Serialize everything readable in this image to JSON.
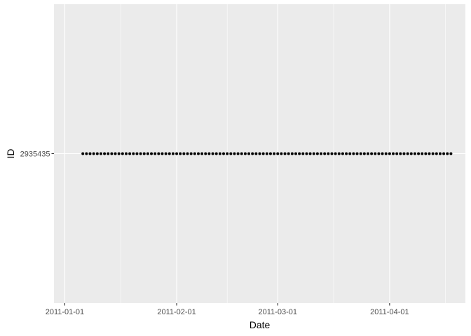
{
  "chart_data": {
    "type": "scatter",
    "xlabel": "Date",
    "ylabel": "ID",
    "x_scale": "date",
    "y_scale": "categorical",
    "xlim": [
      "2010-12-29",
      "2011-04-22"
    ],
    "x_ticks": [
      "2011-01-01",
      "2011-02-01",
      "2011-03-01",
      "2011-04-01"
    ],
    "y_categories": [
      "2935435"
    ],
    "grid": true,
    "legend": "none",
    "panel_color": "#EBEBEB",
    "grid_color": "#FFFFFF",
    "point_color": "#000000",
    "series": [
      {
        "category": "2935435",
        "x": [
          "2011-01-06",
          "2011-01-07",
          "2011-01-08",
          "2011-01-09",
          "2011-01-10",
          "2011-01-11",
          "2011-01-12",
          "2011-01-13",
          "2011-01-14",
          "2011-01-15",
          "2011-01-16",
          "2011-01-17",
          "2011-01-18",
          "2011-01-19",
          "2011-01-20",
          "2011-01-21",
          "2011-01-22",
          "2011-01-23",
          "2011-01-24",
          "2011-01-25",
          "2011-01-26",
          "2011-01-27",
          "2011-01-28",
          "2011-01-29",
          "2011-01-30",
          "2011-01-31",
          "2011-02-01",
          "2011-02-02",
          "2011-02-03",
          "2011-02-04",
          "2011-02-05",
          "2011-02-06",
          "2011-02-07",
          "2011-02-08",
          "2011-02-09",
          "2011-02-10",
          "2011-02-11",
          "2011-02-12",
          "2011-02-13",
          "2011-02-14",
          "2011-02-15",
          "2011-02-16",
          "2011-02-17",
          "2011-02-18",
          "2011-02-19",
          "2011-02-20",
          "2011-02-21",
          "2011-02-22",
          "2011-02-23",
          "2011-02-24",
          "2011-02-25",
          "2011-02-26",
          "2011-02-27",
          "2011-02-28",
          "2011-03-01",
          "2011-03-02",
          "2011-03-03",
          "2011-03-04",
          "2011-03-05",
          "2011-03-06",
          "2011-03-07",
          "2011-03-08",
          "2011-03-09",
          "2011-03-10",
          "2011-03-11",
          "2011-03-12",
          "2011-03-13",
          "2011-03-14",
          "2011-03-15",
          "2011-03-16",
          "2011-03-17",
          "2011-03-18",
          "2011-03-19",
          "2011-03-20",
          "2011-03-21",
          "2011-03-22",
          "2011-03-23",
          "2011-03-24",
          "2011-03-25",
          "2011-03-26",
          "2011-03-27",
          "2011-03-28",
          "2011-03-29",
          "2011-03-30",
          "2011-03-31",
          "2011-04-01",
          "2011-04-02",
          "2011-04-03",
          "2011-04-04",
          "2011-04-05",
          "2011-04-06",
          "2011-04-07",
          "2011-04-08",
          "2011-04-09",
          "2011-04-10",
          "2011-04-11",
          "2011-04-12",
          "2011-04-13",
          "2011-04-14",
          "2011-04-15",
          "2011-04-16",
          "2011-04-17",
          "2011-04-18"
        ]
      }
    ]
  }
}
